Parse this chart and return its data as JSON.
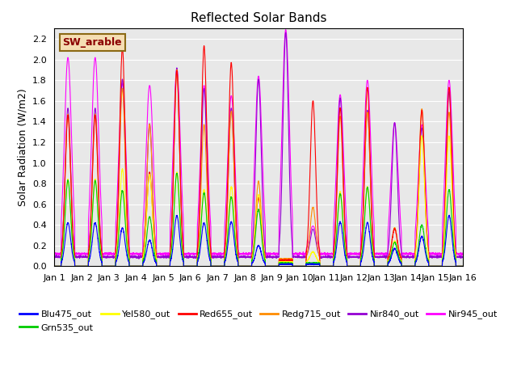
{
  "title": "Reflected Solar Bands",
  "ylabel": "Solar Radiation (W/m2)",
  "xlabel": "",
  "annotation": "SW_arable",
  "annotation_color": "#8B0000",
  "annotation_bg": "#F5DEB3",
  "annotation_border": "#8B6914",
  "ylim": [
    0,
    2.3
  ],
  "yticks": [
    0.0,
    0.2,
    0.4,
    0.6,
    0.8,
    1.0,
    1.2,
    1.4,
    1.6,
    1.8,
    2.0,
    2.2
  ],
  "xtick_labels": [
    "Jan 1",
    "Jan 2",
    "Jan 3",
    "Jan 4",
    "Jan 5",
    "Jan 6",
    "Jan 7",
    "Jan 8",
    "Jan 9",
    "Jan 10",
    "Jan 11",
    "Jan 12",
    "Jan 13",
    "Jan 14",
    "Jan 15",
    "Jan 16"
  ],
  "series": [
    {
      "label": "Blu475_out",
      "color": "#0000FF"
    },
    {
      "label": "Grn535_out",
      "color": "#00CC00"
    },
    {
      "label": "Yel580_out",
      "color": "#FFFF00"
    },
    {
      "label": "Red655_out",
      "color": "#FF0000"
    },
    {
      "label": "Redg715_out",
      "color": "#FF8C00"
    },
    {
      "label": "Nir840_out",
      "color": "#9400D3"
    },
    {
      "label": "Nir945_out",
      "color": "#FF00FF"
    }
  ],
  "legend_series": [
    {
      "label": "Blu475_out",
      "color": "#0000FF"
    },
    {
      "label": "Grn535_out",
      "color": "#00CC00"
    },
    {
      "label": "Yel580_out",
      "color": "#FFFF00"
    },
    {
      "label": "Red655_out",
      "color": "#FF0000"
    },
    {
      "label": "Redg715_out",
      "color": "#FF8C00"
    },
    {
      "label": "Nir840_out",
      "color": "#9400D3"
    },
    {
      "label": "Nir945_out",
      "color": "#FF00FF"
    }
  ],
  "bg_color": "#E8E8E8",
  "grid_color": "#FFFFFF",
  "n_days": 15,
  "pts_per_day": 288,
  "baselines": [
    0.02,
    0.03,
    0.04,
    0.06,
    0.07,
    0.09,
    0.12
  ],
  "day_peaks": [
    [
      0.4,
      0.8,
      0.8,
      1.4,
      1.4,
      1.44,
      1.9
    ],
    [
      0.4,
      0.8,
      0.8,
      1.4,
      1.4,
      1.44,
      1.9
    ],
    [
      0.35,
      0.7,
      0.9,
      2.05,
      1.65,
      1.72,
      1.65
    ],
    [
      0.23,
      0.45,
      0.85,
      0.85,
      1.3,
      1.29,
      1.63
    ],
    [
      0.47,
      0.87,
      0.87,
      1.83,
      1.83,
      1.83,
      1.79
    ],
    [
      0.4,
      0.68,
      0.7,
      2.07,
      1.3,
      1.63,
      1.63
    ],
    [
      0.41,
      0.64,
      0.73,
      1.91,
      1.43,
      1.44,
      1.53
    ],
    [
      0.18,
      0.52,
      0.65,
      0.6,
      0.75,
      1.72,
      1.72
    ],
    [
      0.0,
      0.0,
      0.0,
      0.0,
      0.0,
      2.17,
      2.17
    ],
    [
      0.0,
      0.0,
      0.1,
      1.54,
      0.5,
      0.27,
      0.27
    ],
    [
      0.41,
      0.67,
      0.68,
      1.47,
      1.38,
      1.54,
      1.54
    ],
    [
      0.4,
      0.73,
      0.73,
      1.67,
      1.42,
      1.42,
      1.68
    ],
    [
      0.15,
      0.2,
      0.2,
      0.3,
      0.3,
      1.3,
      1.27
    ],
    [
      0.27,
      0.37,
      1.22,
      1.45,
      1.45,
      1.25,
      1.25
    ],
    [
      0.47,
      0.71,
      1.22,
      1.67,
      1.42,
      1.6,
      1.68
    ]
  ]
}
